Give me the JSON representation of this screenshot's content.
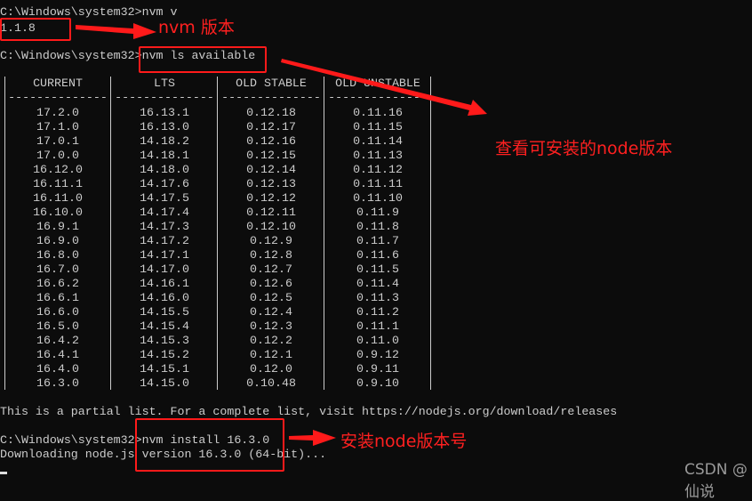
{
  "terminal": {
    "lines": {
      "cmd1": "C:\\Windows\\system32>nvm v",
      "out1": "1.1.8",
      "cmd2": "C:\\Windows\\system32>nvm ls available",
      "partial": "This is a partial list. For a complete list, visit https://nodejs.org/download/releases",
      "cmd3": "C:\\Windows\\system32>nvm install 16.3.0",
      "downloading": "Downloading node.js version 16.3.0 (64-bit)..."
    },
    "table": {
      "headers": [
        "CURRENT",
        "LTS",
        "OLD STABLE",
        "OLD UNSTABLE"
      ],
      "separator": "--------------",
      "columns": [
        [
          "17.2.0",
          "17.1.0",
          "17.0.1",
          "17.0.0",
          "16.12.0",
          "16.11.1",
          "16.11.0",
          "16.10.0",
          "16.9.1",
          "16.9.0",
          "16.8.0",
          "16.7.0",
          "16.6.2",
          "16.6.1",
          "16.6.0",
          "16.5.0",
          "16.4.2",
          "16.4.1",
          "16.4.0",
          "16.3.0"
        ],
        [
          "16.13.1",
          "16.13.0",
          "14.18.2",
          "14.18.1",
          "14.18.0",
          "14.17.6",
          "14.17.5",
          "14.17.4",
          "14.17.3",
          "14.17.2",
          "14.17.1",
          "14.17.0",
          "14.16.1",
          "14.16.0",
          "14.15.5",
          "14.15.4",
          "14.15.3",
          "14.15.2",
          "14.15.1",
          "14.15.0"
        ],
        [
          "0.12.18",
          "0.12.17",
          "0.12.16",
          "0.12.15",
          "0.12.14",
          "0.12.13",
          "0.12.12",
          "0.12.11",
          "0.12.10",
          "0.12.9",
          "0.12.8",
          "0.12.7",
          "0.12.6",
          "0.12.5",
          "0.12.4",
          "0.12.3",
          "0.12.2",
          "0.12.1",
          "0.12.0",
          "0.10.48"
        ],
        [
          "0.11.16",
          "0.11.15",
          "0.11.14",
          "0.11.13",
          "0.11.12",
          "0.11.11",
          "0.11.10",
          "0.11.9",
          "0.11.8",
          "0.11.7",
          "0.11.6",
          "0.11.5",
          "0.11.4",
          "0.11.3",
          "0.11.2",
          "0.11.1",
          "0.11.0",
          "0.9.12",
          "0.9.11",
          "0.9.10"
        ]
      ]
    }
  },
  "annotations": {
    "nvm_version": "nvm 版本",
    "ls_available": "查看可安装的node版本",
    "install": "安装node版本号",
    "color": "#ff1a1a"
  },
  "watermark": "CSDN @仙说"
}
